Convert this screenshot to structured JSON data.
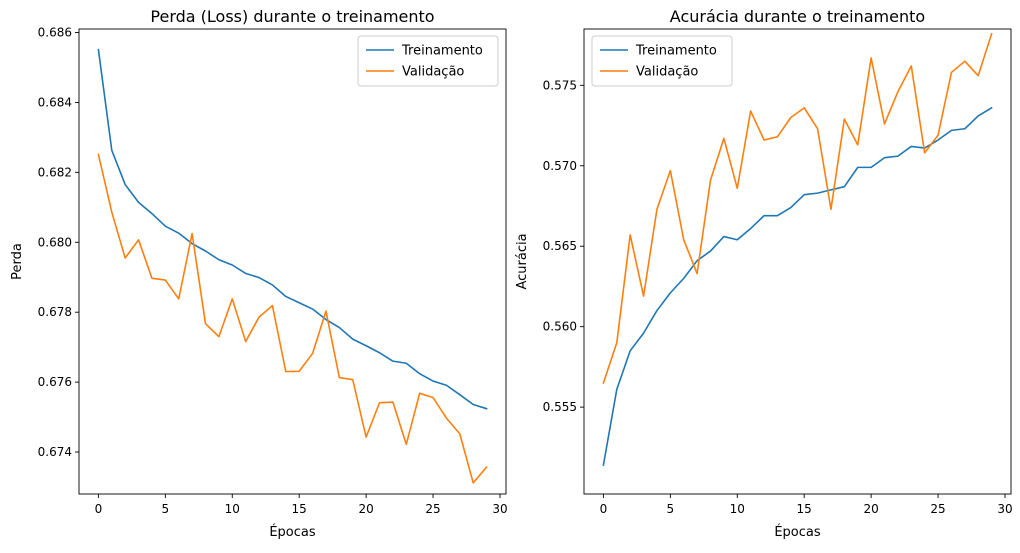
{
  "chart_data": [
    {
      "type": "line",
      "title": "Perda (Loss) durante o treinamento",
      "xlabel": "Épocas",
      "ylabel": "Perda",
      "xlim": [
        -1.45,
        30.45
      ],
      "ylim": [
        0.6728,
        0.6861
      ],
      "xticks": [
        0,
        5,
        10,
        15,
        20,
        25,
        30
      ],
      "yticks": [
        0.674,
        0.676,
        0.678,
        0.68,
        0.682,
        0.684,
        0.686
      ],
      "ytick_labels": [
        "0.674",
        "0.676",
        "0.678",
        "0.680",
        "0.682",
        "0.684",
        "0.686"
      ],
      "grid": false,
      "legend_position": "top-right",
      "series": [
        {
          "name": "Treinamento",
          "color": "#1f77b4",
          "x": [
            0,
            1,
            2,
            3,
            4,
            5,
            6,
            7,
            8,
            9,
            10,
            11,
            12,
            13,
            14,
            15,
            16,
            17,
            18,
            19,
            20,
            21,
            22,
            23,
            24,
            25,
            26,
            27,
            28,
            29
          ],
          "y": [
            0.68551,
            0.68263,
            0.68165,
            0.68114,
            0.68082,
            0.68046,
            0.68026,
            0.67996,
            0.67975,
            0.6795,
            0.67935,
            0.67911,
            0.67899,
            0.67878,
            0.67845,
            0.67827,
            0.67809,
            0.67779,
            0.67756,
            0.67723,
            0.67704,
            0.67684,
            0.6766,
            0.67654,
            0.67624,
            0.67603,
            0.67591,
            0.67564,
            0.67536,
            0.67524
          ]
        },
        {
          "name": "Validação",
          "color": "#ff7f0e",
          "x": [
            0,
            1,
            2,
            3,
            4,
            5,
            6,
            7,
            8,
            9,
            10,
            11,
            12,
            13,
            14,
            15,
            16,
            17,
            18,
            19,
            20,
            21,
            22,
            23,
            24,
            25,
            26,
            27,
            28,
            29
          ],
          "y": [
            0.68251,
            0.68086,
            0.67955,
            0.68007,
            0.67897,
            0.67892,
            0.67838,
            0.68025,
            0.67767,
            0.6773,
            0.67838,
            0.67716,
            0.67786,
            0.67819,
            0.6763,
            0.67631,
            0.67682,
            0.67803,
            0.67613,
            0.67607,
            0.67443,
            0.67541,
            0.67543,
            0.67422,
            0.67568,
            0.67556,
            0.67497,
            0.67452,
            0.67312,
            0.67357
          ]
        }
      ]
    },
    {
      "type": "line",
      "title": "Acurácia durante o treinamento",
      "xlabel": "Épocas",
      "ylabel": "Acurácia",
      "xlim": [
        -1.45,
        30.45
      ],
      "ylim": [
        0.5496,
        0.5785
      ],
      "xticks": [
        0,
        5,
        10,
        15,
        20,
        25,
        30
      ],
      "yticks": [
        0.555,
        0.56,
        0.565,
        0.57,
        0.575
      ],
      "ytick_labels": [
        "0.555",
        "0.560",
        "0.565",
        "0.570",
        "0.575"
      ],
      "grid": false,
      "legend_position": "top-left",
      "series": [
        {
          "name": "Treinamento",
          "color": "#1f77b4",
          "x": [
            0,
            1,
            2,
            3,
            4,
            5,
            6,
            7,
            8,
            9,
            10,
            11,
            12,
            13,
            14,
            15,
            16,
            17,
            18,
            19,
            20,
            21,
            22,
            23,
            24,
            25,
            26,
            27,
            28,
            29
          ],
          "y": [
            0.5514,
            0.5561,
            0.5585,
            0.5596,
            0.561,
            0.5621,
            0.563,
            0.5641,
            0.5647,
            0.5656,
            0.5654,
            0.5661,
            0.5669,
            0.5669,
            0.5674,
            0.5682,
            0.5683,
            0.5685,
            0.5687,
            0.5699,
            0.5699,
            0.5705,
            0.5706,
            0.5712,
            0.5711,
            0.5716,
            0.5722,
            0.5723,
            0.5731,
            0.5736
          ]
        },
        {
          "name": "Validação",
          "color": "#ff7f0e",
          "x": [
            0,
            1,
            2,
            3,
            4,
            5,
            6,
            7,
            8,
            9,
            10,
            11,
            12,
            13,
            14,
            15,
            16,
            17,
            18,
            19,
            20,
            21,
            22,
            23,
            24,
            25,
            26,
            27,
            28,
            29
          ],
          "y": [
            0.5565,
            0.559,
            0.5657,
            0.5619,
            0.5673,
            0.5697,
            0.5654,
            0.5633,
            0.5691,
            0.5717,
            0.5686,
            0.5734,
            0.5716,
            0.5718,
            0.573,
            0.5736,
            0.5723,
            0.5673,
            0.5729,
            0.5713,
            0.5767,
            0.5726,
            0.5746,
            0.5762,
            0.5708,
            0.5719,
            0.5758,
            0.5765,
            0.5756,
            0.5782
          ]
        }
      ]
    }
  ]
}
